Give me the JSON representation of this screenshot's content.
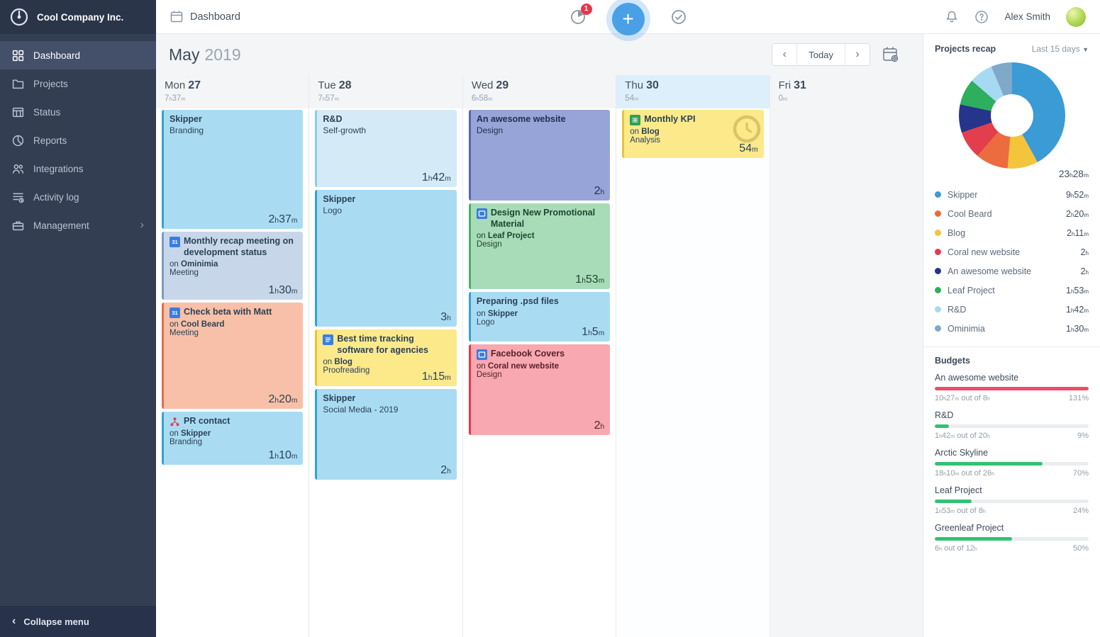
{
  "company": {
    "name": "Cool Company Inc."
  },
  "sidebar": {
    "items": [
      {
        "label": "Dashboard",
        "icon": "dashboard-icon",
        "active": true
      },
      {
        "label": "Projects",
        "icon": "projects-icon"
      },
      {
        "label": "Status",
        "icon": "status-icon"
      },
      {
        "label": "Reports",
        "icon": "reports-icon"
      },
      {
        "label": "Integrations",
        "icon": "integrations-icon"
      },
      {
        "label": "Activity log",
        "icon": "activity-icon"
      },
      {
        "label": "Management",
        "icon": "management-icon",
        "chevron": true
      }
    ],
    "collapse_label": "Collapse menu"
  },
  "topbar": {
    "title": "Dashboard",
    "timer_badge": "1",
    "user_name": "Alex Smith"
  },
  "calendar": {
    "month": "May",
    "year": "2019",
    "today_label": "Today",
    "days": [
      {
        "label": "Mon",
        "date": "27",
        "total": "7h37m",
        "events": [
          {
            "style": "blue",
            "title": "Skipper",
            "subtitle": "Branding",
            "duration": "2h37m",
            "minutes": 157
          },
          {
            "style": "periwinkle",
            "icon": "calendar-event",
            "title": "Monthly recap meeting on development status",
            "on": "Ominimia",
            "category": "Meeting",
            "duration": "1h30m",
            "minutes": 90
          },
          {
            "style": "salmon",
            "icon": "calendar-event",
            "title": "Check beta with Matt",
            "on": "Cool Beard",
            "category": "Meeting",
            "duration": "2h20m",
            "minutes": 140
          },
          {
            "style": "blue",
            "icon": "org-chart",
            "title": "PR contact",
            "on": "Skipper",
            "category": "Branding",
            "duration": "1h10m",
            "minutes": 70
          }
        ]
      },
      {
        "label": "Tue",
        "date": "28",
        "total": "7h57m",
        "events": [
          {
            "style": "paleblue",
            "title": "R&D",
            "subtitle": "Self-growth",
            "duration": "1h42m",
            "minutes": 102
          },
          {
            "style": "blue",
            "title": "Skipper",
            "subtitle": "Logo",
            "duration": "3h",
            "minutes": 180
          },
          {
            "style": "yellow",
            "icon": "doc",
            "title": "Best time tracking software for agencies",
            "on": "Blog",
            "category": "Proofreading",
            "duration": "1h15m",
            "minutes": 75
          },
          {
            "style": "blue",
            "title": "Skipper",
            "subtitle": "Social Media - 2019",
            "duration": "2h",
            "minutes": 120
          }
        ]
      },
      {
        "label": "Wed",
        "date": "29",
        "total": "6h58m",
        "events": [
          {
            "style": "purple",
            "title": "An awesome website",
            "subtitle": "Design",
            "duration": "2h",
            "minutes": 120
          },
          {
            "style": "green",
            "icon": "slides",
            "title": "Design New Promotional Material",
            "on": "Leaf Project",
            "category": "Design",
            "duration": "1h53m",
            "minutes": 113
          },
          {
            "style": "blue",
            "title": "Preparing .psd files",
            "on": "Skipper",
            "category": "Logo",
            "duration": "1h5m",
            "minutes": 65
          },
          {
            "style": "red",
            "icon": "slides",
            "title": "Facebook Covers",
            "on": "Coral new website",
            "category": "Design",
            "duration": "2h",
            "minutes": 120
          }
        ]
      },
      {
        "label": "Thu",
        "date": "30",
        "total": "54m",
        "today": true,
        "events": [
          {
            "style": "yellow",
            "icon": "sheet",
            "title": "Monthly KPI",
            "on": "Blog",
            "category": "Analysis",
            "duration": "54m",
            "minutes": 54,
            "timer": true
          }
        ]
      },
      {
        "label": "Fri",
        "date": "31",
        "total": "0m",
        "muted": true,
        "events": []
      }
    ]
  },
  "recap": {
    "title": "Projects recap",
    "range_label": "Last 15 days",
    "total": "23h28m",
    "legend": [
      {
        "name": "Skipper",
        "time": "9h52m",
        "minutes": 592,
        "color": "#3a9bd5"
      },
      {
        "name": "Cool Beard",
        "time": "2h20m",
        "minutes": 140,
        "color": "#ec6b3f"
      },
      {
        "name": "Blog",
        "time": "2h11m",
        "minutes": 131,
        "color": "#f2c53d"
      },
      {
        "name": "Coral new website",
        "time": "2h",
        "minutes": 120,
        "color": "#e23e4e"
      },
      {
        "name": "An awesome website",
        "time": "2h",
        "minutes": 120,
        "color": "#26348c"
      },
      {
        "name": "Leaf Project",
        "time": "1h53m",
        "minutes": 113,
        "color": "#2eaf5e"
      },
      {
        "name": "R&D",
        "time": "1h42m",
        "minutes": 102,
        "color": "#a6d9f2"
      },
      {
        "name": "Ominimia",
        "time": "1h30m",
        "minutes": 90,
        "color": "#7fa8c9"
      }
    ],
    "donut_order": [
      "Skipper",
      "Blog",
      "Cool Beard",
      "Coral new website",
      "An awesome website",
      "Leaf Project",
      "R&D",
      "Ominimia"
    ]
  },
  "budgets": {
    "title": "Budgets",
    "items": [
      {
        "name": "An awesome website",
        "detail": "10h27m out of 8h",
        "percent_label": "131%",
        "percent": 100,
        "over": true
      },
      {
        "name": "R&D",
        "detail": "1h42m out of 20h",
        "percent_label": "9%",
        "percent": 9
      },
      {
        "name": "Arctic Skyline",
        "detail": "18h10m out of 26h",
        "percent_label": "70%",
        "percent": 70
      },
      {
        "name": "Leaf Project",
        "detail": "1h53m out of 8h",
        "percent_label": "24%",
        "percent": 24
      },
      {
        "name": "Greenleaf Project",
        "detail": "6h out of 12h",
        "percent_label": "50%",
        "percent": 50
      }
    ]
  },
  "chart_data": {
    "type": "pie",
    "title": "Projects recap",
    "categories": [
      "Skipper",
      "Cool Beard",
      "Blog",
      "Coral new website",
      "An awesome website",
      "Leaf Project",
      "R&D",
      "Ominimia"
    ],
    "values": [
      592,
      140,
      131,
      120,
      120,
      113,
      102,
      90
    ],
    "unit": "minutes",
    "total_label": "23h28m",
    "legend_position": "below"
  }
}
